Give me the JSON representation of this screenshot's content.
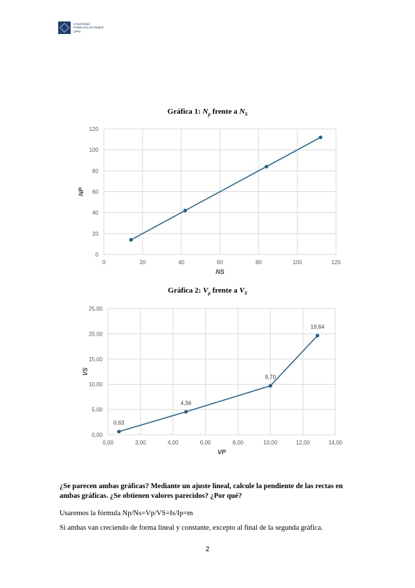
{
  "header": {
    "logo_lines": [
      "Universidad",
      "Politécnica de Madrid",
      "UPM"
    ]
  },
  "charts": [
    {
      "title_prefix": "Gráfica 1: ",
      "title_var1": "N",
      "title_sub1": "p",
      "title_mid": " frente a ",
      "title_var2": "N",
      "title_sub2": "S"
    },
    {
      "title_prefix": "Gráfica 2: ",
      "title_var1": "V",
      "title_sub1": "p",
      "title_mid": " frente a ",
      "title_var2": "V",
      "title_sub2": "S"
    }
  ],
  "chart_data": [
    {
      "type": "line",
      "xlabel": "NS",
      "ylabel": "NP",
      "xlim": [
        0,
        120
      ],
      "ylim": [
        0,
        120
      ],
      "xticks": [
        "0",
        "20",
        "40",
        "60",
        "80",
        "100",
        "120"
      ],
      "yticks": [
        "0",
        "20",
        "40",
        "60",
        "80",
        "100",
        "120"
      ],
      "grid": true,
      "series_color": "#1f5f8b",
      "x": [
        14,
        42,
        84,
        112
      ],
      "y": [
        14,
        42,
        84,
        112
      ],
      "data_labels": []
    },
    {
      "type": "line",
      "xlabel": "VP",
      "ylabel": "VS",
      "xlim": [
        0,
        14
      ],
      "ylim": [
        0,
        25
      ],
      "xticks": [
        "0,00",
        "2,00",
        "4,00",
        "6,00",
        "8,00",
        "10,00",
        "12,00",
        "14,00"
      ],
      "yticks": [
        "0,00",
        "5,00",
        "10,00",
        "15,00",
        "20,00",
        "25,00"
      ],
      "grid": true,
      "series_color": "#1f5f8b",
      "x": [
        0.67,
        4.8,
        10.0,
        12.9
      ],
      "y": [
        0.63,
        4.56,
        9.7,
        19.64
      ],
      "data_labels": [
        "0,63",
        "4,56",
        "9,70",
        "19,64"
      ]
    }
  ],
  "body": {
    "question": "¿Se parecen ambas gráficas? Mediante un ajuste lineal, calcule la pendiente de las rectas en ambas gráficas. ¿Se obtienen valores parecidos? ¿Por qué?",
    "p1": "Usaremos la fórmula Np/Ns=Vp/VS=Is/Ip=m",
    "p2": "Si ambas van creciendo de forma lineal y constante, excepto al final de la segunda gráfica."
  },
  "footer": {
    "page_number": "2"
  }
}
